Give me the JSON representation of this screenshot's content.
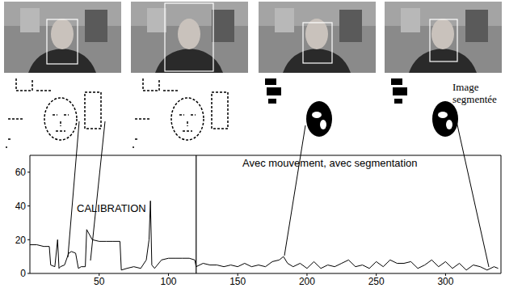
{
  "chart_data": {
    "type": "line",
    "annotations": [
      "CALIBRATION",
      "Avec mouvement, avec segmentation"
    ],
    "phase_boundary": 120,
    "x": [
      0,
      5,
      10,
      14,
      15,
      18,
      20,
      21,
      22,
      25,
      28,
      30,
      33,
      35,
      37,
      40,
      41,
      45,
      50,
      55,
      60,
      65,
      66,
      70,
      75,
      80,
      84,
      86,
      87,
      88,
      90,
      95,
      100,
      105,
      110,
      115,
      119,
      120,
      125,
      130,
      135,
      140,
      145,
      150,
      155,
      160,
      165,
      170,
      175,
      180,
      183,
      186,
      190,
      195,
      200,
      205,
      210,
      215,
      220,
      225,
      230,
      235,
      240,
      245,
      250,
      255,
      260,
      265,
      270,
      275,
      280,
      285,
      290,
      295,
      300,
      305,
      310,
      315,
      320,
      325,
      330,
      335,
      338
    ],
    "values": [
      17,
      17,
      16,
      16,
      5,
      4,
      20,
      3,
      4,
      5,
      12,
      13,
      12,
      3,
      4,
      4,
      26,
      20,
      19,
      19,
      19,
      19,
      2,
      3,
      4,
      3,
      8,
      20,
      43,
      5,
      3,
      8,
      9,
      9,
      9,
      9,
      8,
      4,
      6,
      5,
      5,
      4,
      5,
      4,
      6,
      4,
      5,
      4,
      7,
      8,
      10,
      6,
      4,
      6,
      3,
      7,
      3,
      5,
      4,
      6,
      8,
      4,
      5,
      3,
      7,
      4,
      8,
      6,
      6,
      7,
      3,
      5,
      8,
      4,
      7,
      3,
      6,
      2,
      5,
      4,
      2,
      4,
      3
    ],
    "color": "#000000",
    "xlim": [
      0,
      340
    ],
    "xticks": [
      50,
      100,
      150,
      200,
      250,
      300
    ],
    "ylim": [
      0,
      70
    ],
    "yticks": [
      0,
      20,
      40,
      60
    ],
    "grid": false
  },
  "figure": {
    "label": "Image segmentée"
  }
}
